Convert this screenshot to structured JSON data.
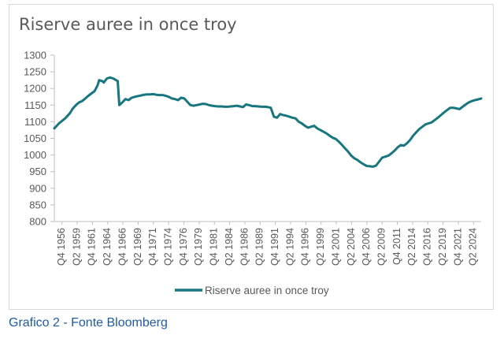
{
  "chart_data": {
    "type": "line",
    "title": "Riserve auree in once troy",
    "xlabel": "",
    "ylabel": "",
    "ylim": [
      800,
      1300
    ],
    "yticks": [
      800,
      850,
      900,
      950,
      1000,
      1050,
      1100,
      1150,
      1200,
      1250,
      1300
    ],
    "grid": false,
    "legend": "bottom",
    "line_color": "#17767e",
    "x_tick_labels": [
      "Q4 1956",
      "Q2 1959",
      "Q4 1961",
      "Q2 1964",
      "Q4 1966",
      "Q2 1969",
      "Q4 1971",
      "Q2 1974",
      "Q4 1976",
      "Q2 1979",
      "Q4 1981",
      "Q2 1984",
      "Q4 1986",
      "Q2 1989",
      "Q4 1991",
      "Q2 1994",
      "Q4 1996",
      "Q2 1999",
      "Q4 2001",
      "Q2 2004",
      "Q4 2006",
      "Q2 2009",
      "Q4 2011",
      "Q2 2014",
      "Q4 2016",
      "Q2 2019",
      "Q4 2021",
      "Q2 2024"
    ],
    "series": [
      {
        "name": "Riserve auree in once troy",
        "x": [
          1956.75,
          1957.5,
          1958.5,
          1959.25,
          1959.75,
          1960.25,
          1960.75,
          1961.25,
          1961.75,
          1962.25,
          1962.75,
          1963.25,
          1963.75,
          1964.0,
          1964.5,
          1964.75,
          1965.25,
          1965.75,
          1966.25,
          1966.75,
          1967.0,
          1967.25,
          1967.75,
          1968.25,
          1968.75,
          1969.25,
          1969.75,
          1970.25,
          1970.75,
          1971.25,
          1971.75,
          1972.25,
          1972.75,
          1973.25,
          1973.75,
          1974.25,
          1974.75,
          1975.25,
          1975.75,
          1976.25,
          1976.75,
          1977.25,
          1977.75,
          1978.25,
          1978.75,
          1979.25,
          1979.75,
          1980.25,
          1980.75,
          1981.25,
          1981.75,
          1982.25,
          1982.75,
          1983.25,
          1983.75,
          1984.25,
          1984.75,
          1985.25,
          1985.75,
          1986.25,
          1986.75,
          1987.25,
          1987.75,
          1988.25,
          1988.75,
          1989.25,
          1989.75,
          1990.25,
          1990.75,
          1991.25,
          1991.75,
          1992.25,
          1992.75,
          1993.25,
          1993.75,
          1994.25,
          1994.75,
          1995.25,
          1995.75,
          1996.25,
          1996.75,
          1997.25,
          1997.75,
          1998.25,
          1998.75,
          1999.25,
          1999.75,
          2000.25,
          2000.75,
          2001.25,
          2001.75,
          2002.25,
          2002.75,
          2003.25,
          2003.75,
          2004.25,
          2004.75,
          2005.25,
          2005.75,
          2006.25,
          2006.75,
          2007.25,
          2007.75,
          2008.25,
          2008.75,
          2009.25,
          2009.75,
          2010.25,
          2010.75,
          2011.25,
          2011.75,
          2012.25,
          2012.75,
          2013.25,
          2013.75,
          2014.25,
          2014.75,
          2015.25,
          2015.75,
          2016.25,
          2016.75,
          2017.25,
          2017.75,
          2018.25,
          2018.75,
          2019.25,
          2019.75,
          2020.25,
          2020.75,
          2021.25,
          2021.75,
          2022.25,
          2022.75,
          2023.25,
          2023.75,
          2024.25,
          2024.75,
          2025.25,
          2025.75
        ],
        "values": [
          1080,
          1095,
          1110,
          1125,
          1140,
          1150,
          1158,
          1162,
          1170,
          1178,
          1185,
          1192,
          1210,
          1225,
          1222,
          1218,
          1230,
          1233,
          1230,
          1225,
          1222,
          1150,
          1158,
          1168,
          1165,
          1172,
          1175,
          1177,
          1179,
          1181,
          1182,
          1182,
          1183,
          1181,
          1180,
          1180,
          1178,
          1175,
          1170,
          1168,
          1165,
          1172,
          1170,
          1160,
          1150,
          1148,
          1150,
          1152,
          1154,
          1153,
          1150,
          1148,
          1147,
          1146,
          1146,
          1145,
          1145,
          1146,
          1147,
          1148,
          1146,
          1144,
          1152,
          1150,
          1147,
          1147,
          1146,
          1145,
          1145,
          1144,
          1142,
          1115,
          1112,
          1123,
          1120,
          1118,
          1115,
          1112,
          1110,
          1100,
          1095,
          1088,
          1082,
          1085,
          1088,
          1080,
          1075,
          1070,
          1065,
          1058,
          1052,
          1048,
          1040,
          1030,
          1020,
          1010,
          998,
          990,
          985,
          978,
          972,
          967,
          966,
          965,
          968,
          980,
          992,
          995,
          998,
          1005,
          1013,
          1023,
          1030,
          1028,
          1035,
          1045,
          1058,
          1068,
          1078,
          1085,
          1092,
          1095,
          1098,
          1105,
          1112,
          1120,
          1128,
          1135,
          1142,
          1142,
          1140,
          1138,
          1145,
          1152,
          1158,
          1162,
          1165,
          1167,
          1170
        ]
      }
    ]
  },
  "caption": "Grafico 2 - Fonte Bloomberg"
}
